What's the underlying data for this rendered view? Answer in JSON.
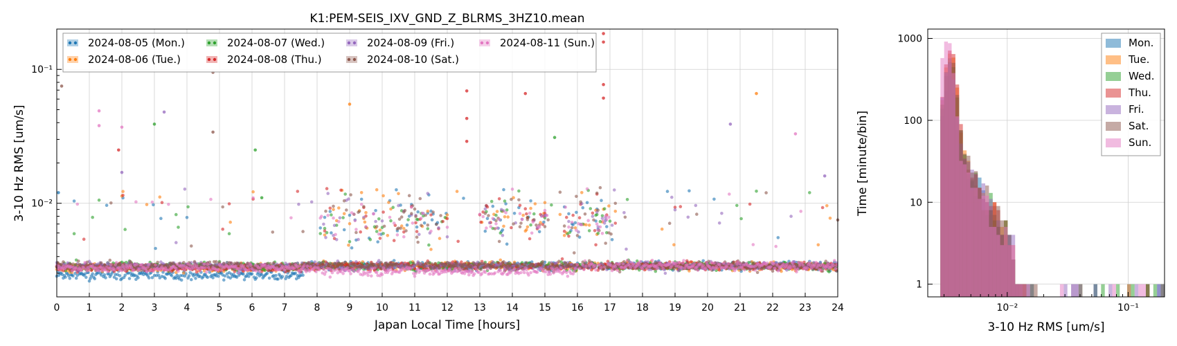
{
  "chart_data": [
    {
      "type": "scatter",
      "title": "K1:PEM-SEIS_IXV_GND_Z_BLRMS_3HZ10.mean",
      "xlabel": "Japan Local Time [hours]",
      "ylabel": "3-10 Hz RMS [um/s]",
      "xlim": [
        0,
        24
      ],
      "ylim": [
        0.002,
        0.2
      ],
      "yscale": "log",
      "grid": true,
      "legend_position": "top-left",
      "xticks": [
        "0",
        "1",
        "2",
        "3",
        "4",
        "5",
        "6",
        "7",
        "8",
        "9",
        "10",
        "11",
        "12",
        "13",
        "14",
        "15",
        "16",
        "17",
        "18",
        "19",
        "20",
        "21",
        "22",
        "23",
        "24"
      ],
      "yticks": [
        {
          "value": 0.01,
          "label": "10⁻²"
        },
        {
          "value": 0.1,
          "label": "10⁻¹"
        }
      ],
      "series": [
        {
          "name": "2024-08-05 (Mon.)",
          "color": "#1f77b4",
          "baseline": 0.0029,
          "day_start": 7.6
        },
        {
          "name": "2024-08-06 (Tue.)",
          "color": "#ff7f0e",
          "baseline": 0.0033,
          "day_start": 8.0
        },
        {
          "name": "2024-08-07 (Wed.)",
          "color": "#2ca02c",
          "baseline": 0.0034,
          "day_start": 8.0
        },
        {
          "name": "2024-08-08 (Thu.)",
          "color": "#d62728",
          "baseline": 0.0033,
          "day_start": 8.0
        },
        {
          "name": "2024-08-09 (Fri.)",
          "color": "#9467bd",
          "baseline": 0.0034,
          "day_start": 8.0
        },
        {
          "name": "2024-08-10 (Sat.)",
          "color": "#8c564b",
          "baseline": 0.0034,
          "day_start": 8.0
        },
        {
          "name": "2024-08-11 (Sun.)",
          "color": "#e377c2",
          "baseline": 0.0033,
          "day_start": 8.0
        }
      ],
      "activity_blocks": [
        {
          "start": 8.1,
          "end": 12.0,
          "median": 0.0075
        },
        {
          "start": 13.0,
          "end": 15.1,
          "median": 0.008
        },
        {
          "start": 15.6,
          "end": 17.2,
          "median": 0.0075
        }
      ],
      "outliers": [
        {
          "x": 0.05,
          "y": 0.012,
          "series": 0
        },
        {
          "x": 0.15,
          "y": 0.075,
          "series": 5
        },
        {
          "x": 1.3,
          "y": 0.049,
          "series": 6
        },
        {
          "x": 1.3,
          "y": 0.038,
          "series": 6
        },
        {
          "x": 1.9,
          "y": 0.025,
          "series": 3
        },
        {
          "x": 2.0,
          "y": 0.037,
          "series": 6
        },
        {
          "x": 2.0,
          "y": 0.017,
          "series": 4
        },
        {
          "x": 3.0,
          "y": 0.039,
          "series": 2
        },
        {
          "x": 3.3,
          "y": 0.048,
          "series": 4
        },
        {
          "x": 4.8,
          "y": 0.095,
          "series": 5
        },
        {
          "x": 4.8,
          "y": 0.034,
          "series": 5
        },
        {
          "x": 6.1,
          "y": 0.025,
          "series": 2
        },
        {
          "x": 6.3,
          "y": 0.011,
          "series": 2
        },
        {
          "x": 9.0,
          "y": 0.055,
          "series": 1
        },
        {
          "x": 12.6,
          "y": 0.069,
          "series": 3
        },
        {
          "x": 12.6,
          "y": 0.043,
          "series": 3
        },
        {
          "x": 12.6,
          "y": 0.029,
          "series": 3
        },
        {
          "x": 14.4,
          "y": 0.066,
          "series": 3
        },
        {
          "x": 15.3,
          "y": 0.031,
          "series": 2
        },
        {
          "x": 16.8,
          "y": 0.185,
          "series": 3
        },
        {
          "x": 16.8,
          "y": 0.16,
          "series": 3
        },
        {
          "x": 16.8,
          "y": 0.077,
          "series": 3
        },
        {
          "x": 16.8,
          "y": 0.061,
          "series": 3
        },
        {
          "x": 20.7,
          "y": 0.039,
          "series": 4
        },
        {
          "x": 21.5,
          "y": 0.066,
          "series": 1
        },
        {
          "x": 22.7,
          "y": 0.033,
          "series": 6
        },
        {
          "x": 23.6,
          "y": 0.016,
          "series": 4
        },
        {
          "x": 24.0,
          "y": 0.0075,
          "series": 5
        }
      ]
    },
    {
      "type": "bar",
      "title": "",
      "xlabel": "3-10 Hz RMS [um/s]",
      "ylabel": "Time [minute/bin]",
      "xlim": [
        0.0022,
        0.2
      ],
      "ylim": [
        0.7,
        1300
      ],
      "xscale": "log",
      "yscale": "log",
      "grid": true,
      "legend_position": "top-right",
      "xticks": [
        {
          "value": 0.01,
          "label": "10⁻²"
        },
        {
          "value": 0.1,
          "label": "10⁻¹"
        }
      ],
      "yticks": [
        {
          "value": 1,
          "label": "1"
        },
        {
          "value": 10,
          "label": "10"
        },
        {
          "value": 100,
          "label": "100"
        },
        {
          "value": 1000,
          "label": "1000"
        }
      ],
      "series": [
        {
          "name": "Mon.",
          "color": "#1f77b4",
          "peak_x": 0.0033,
          "peak": 270,
          "tail_end": 0.032
        },
        {
          "name": "Tue.",
          "color": "#ff7f0e",
          "peak_x": 0.0034,
          "peak": 660,
          "tail_end": 0.04
        },
        {
          "name": "Wed.",
          "color": "#2ca02c",
          "peak_x": 0.0034,
          "peak": 520,
          "tail_end": 0.03
        },
        {
          "name": "Thu.",
          "color": "#d62728",
          "peak_x": 0.0034,
          "peak": 720,
          "tail_end": 0.18
        },
        {
          "name": "Fri.",
          "color": "#9467bd",
          "peak_x": 0.0033,
          "peak": 450,
          "tail_end": 0.03
        },
        {
          "name": "Sat.",
          "color": "#8c564b",
          "peak_x": 0.0034,
          "peak": 580,
          "tail_end": 0.12
        },
        {
          "name": "Sun.",
          "color": "#e377c2",
          "peak_x": 0.0032,
          "peak": 950,
          "tail_end": 0.025
        }
      ]
    }
  ]
}
